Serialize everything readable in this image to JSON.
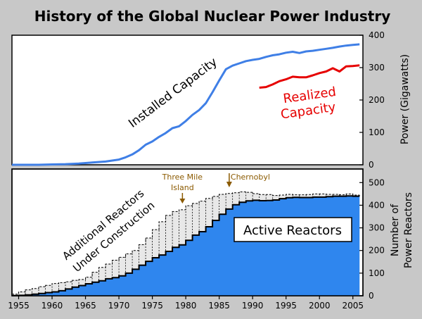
{
  "chart_data": {
    "title": "History of the Global Nuclear Power Industry",
    "colors": {
      "background": "#c8c8c8",
      "installed": "#3f7fe6",
      "realized": "#e60000",
      "active_fill": "#2f86ee",
      "construction_fill": "#e8e8e8",
      "annotation": "#8b5a00"
    },
    "panels": [
      {
        "type": "line",
        "ylabel": "Power (Gigawatts)",
        "ylim": [
          0,
          400
        ],
        "yticks": [
          "0",
          "100",
          "200",
          "300",
          "400"
        ],
        "xlim": [
          1954,
          2006.5
        ],
        "grid": false,
        "series": [
          {
            "name": "Installed Capacity",
            "x": [
              1954,
              1956,
              1958,
              1960,
              1962,
              1964,
              1966,
              1968,
              1970,
              1971,
              1972,
              1973,
              1974,
              1975,
              1976,
              1977,
              1978,
              1979,
              1980,
              1981,
              1982,
              1983,
              1984,
              1985,
              1986,
              1987,
              1988,
              1989,
              1990,
              1991,
              1992,
              1993,
              1994,
              1995,
              1996,
              1997,
              1998,
              1999,
              2000,
              2001,
              2002,
              2003,
              2004,
              2005,
              2006
            ],
            "values": [
              0,
              0,
              0,
              1,
              2,
              4,
              7,
              10,
              16,
              23,
              32,
              45,
              62,
              72,
              86,
              98,
              113,
              119,
              135,
              154,
              169,
              190,
              224,
              260,
              295,
              306,
              313,
              320,
              324,
              327,
              333,
              338,
              341,
              346,
              349,
              345,
              350,
              352,
              355,
              358,
              361,
              365,
              368,
              370,
              372
            ]
          },
          {
            "name": "Realized Capacity",
            "x": [
              1991,
              1992,
              1993,
              1994,
              1995,
              1996,
              1997,
              1998,
              1999,
              2000,
              2001,
              2002,
              2003,
              2004,
              2005,
              2006
            ],
            "values": [
              238,
              240,
              248,
              258,
              264,
              272,
              270,
              270,
              276,
              283,
              288,
              298,
              288,
              304,
              305,
              307
            ]
          }
        ]
      },
      {
        "type": "area",
        "ylabel_lines": [
          "Number of",
          "Power Reactors"
        ],
        "ylim": [
          0,
          560
        ],
        "yticks": [
          "0",
          "100",
          "200",
          "300",
          "400",
          "500"
        ],
        "xticks": [
          "1955",
          "1960",
          "1965",
          "1970",
          "1975",
          "1980",
          "1985",
          "1990",
          "1995",
          "2000",
          "2005"
        ],
        "grid": false,
        "years": [
          1954,
          1955,
          1956,
          1957,
          1958,
          1959,
          1960,
          1961,
          1962,
          1963,
          1964,
          1965,
          1966,
          1967,
          1968,
          1969,
          1970,
          1971,
          1972,
          1973,
          1974,
          1975,
          1976,
          1977,
          1978,
          1979,
          1980,
          1981,
          1982,
          1983,
          1984,
          1985,
          1986,
          1987,
          1988,
          1989,
          1990,
          1991,
          1992,
          1993,
          1994,
          1995,
          1996,
          1997,
          1998,
          1999,
          2000,
          2001,
          2002,
          2003,
          2004,
          2005
        ],
        "series": [
          {
            "name": "Active Reactors",
            "values": [
              1,
              2,
              4,
              7,
              10,
              14,
              17,
              22,
              30,
              38,
              45,
              53,
              60,
              66,
              75,
              80,
              88,
              100,
              117,
              135,
              152,
              168,
              180,
              196,
              214,
              225,
              245,
              268,
              283,
              305,
              333,
              360,
              383,
              402,
              413,
              419,
              422,
              420,
              421,
              423,
              429,
              433,
              435,
              434,
              434,
              436,
              436,
              438,
              440,
              440,
              441,
              440
            ]
          },
          {
            "name": "Additional Reactors Under Construction",
            "values": [
              7,
              17,
              26,
              32,
              40,
              46,
              54,
              58,
              62,
              68,
              72,
              82,
              104,
              125,
              140,
              157,
              170,
              185,
              200,
              226,
              255,
              292,
              327,
              355,
              372,
              380,
              398,
              408,
              418,
              430,
              439,
              448,
              452,
              455,
              459,
              457,
              451,
              447,
              447,
              443,
              445,
              448,
              446,
              446,
              447,
              450,
              450,
              448,
              448,
              446,
              450,
              445
            ]
          }
        ]
      }
    ],
    "annotations": [
      {
        "name": "three-mile-island",
        "lines": [
          "Three Mile",
          "Island"
        ],
        "year": 1979
      },
      {
        "name": "chernobyl",
        "lines": [
          "Chernobyl"
        ],
        "year": 1986
      }
    ],
    "labels": {
      "installed": "Installed Capacity",
      "realized_lines": [
        "Realized",
        "Capacity"
      ],
      "construction_lines": [
        "Additional Reactors",
        "Under Construction"
      ],
      "active": "Active Reactors"
    }
  }
}
